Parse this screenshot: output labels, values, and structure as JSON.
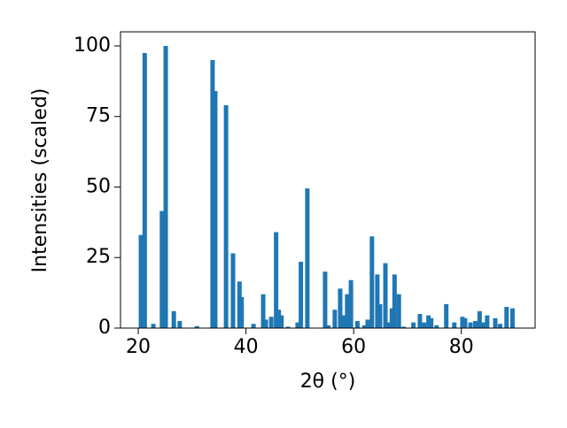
{
  "chart_data": {
    "type": "bar",
    "x_label": "2θ (°)",
    "y_label": "Intensities (scaled)",
    "color": "#1f77b4",
    "x": [
      20.5,
      21.2,
      22.8,
      24.4,
      25.1,
      26.6,
      27.7,
      30.9,
      33.8,
      34.3,
      36.3,
      37.6,
      38.8,
      39.2,
      41.4,
      43.2,
      43.7,
      44.7,
      45.6,
      46.1,
      46.6,
      47.8,
      49.6,
      50.2,
      51.4,
      54.7,
      55.3,
      56.5,
      57.5,
      58.1,
      58.8,
      59.5,
      60.7,
      62.0,
      62.6,
      63.4,
      64.4,
      64.9,
      65.9,
      66.4,
      67.1,
      67.6,
      68.4,
      69.3,
      71.1,
      72.3,
      73.1,
      73.9,
      74.4,
      75.4,
      77.2,
      78.7,
      80.2,
      80.7,
      81.7,
      82.6,
      83.4,
      84.1,
      84.8,
      86.3,
      87.2,
      88.4,
      89.5
    ],
    "values": [
      33,
      97.5,
      1.5,
      41.5,
      100,
      6,
      2.5,
      0.7,
      95,
      84,
      79,
      26.5,
      16.5,
      11,
      1.5,
      12,
      3,
      4,
      34,
      6.5,
      4.5,
      0.5,
      2,
      23.5,
      49.5,
      20,
      1,
      6.5,
      14,
      4.5,
      12,
      17,
      2.5,
      1,
      3,
      32.5,
      19,
      8.5,
      23,
      2,
      7,
      19,
      12,
      0.5,
      2,
      5,
      2,
      4.5,
      3.5,
      1,
      8.5,
      2,
      4,
      3.5,
      2,
      2.5,
      6,
      2,
      4.5,
      3.5,
      1.5,
      7.5,
      7
    ],
    "xlim": [
      16.7,
      93.7
    ],
    "xticks": [
      20,
      40,
      60,
      80
    ],
    "ylim": [
      0,
      105
    ],
    "yticks": [
      0,
      25,
      50,
      75,
      100
    ]
  }
}
